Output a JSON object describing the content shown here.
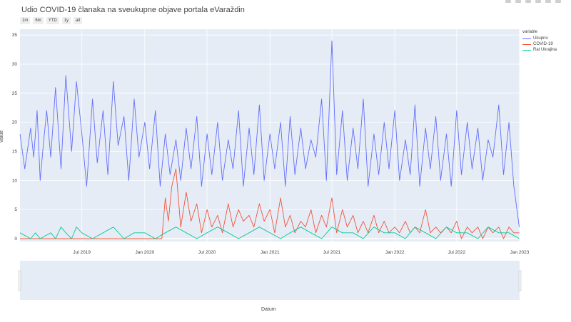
{
  "title": "Udio COVID-19 članaka na sveukupne objave portala eVaraždin",
  "range_buttons": [
    "1m",
    "6m",
    "YTD",
    "1y",
    "all"
  ],
  "chart_data": {
    "type": "line",
    "title": "Udio COVID-19 članaka na sveukupne objave portala eVaraždin",
    "xlabel": "Datum",
    "ylabel": "value",
    "legend_title": "variable",
    "legend_position": "top-right",
    "x_range": [
      "2019-01-01",
      "2023-01-01"
    ],
    "ylim": [
      0,
      36
    ],
    "y_ticks": [
      0,
      5,
      10,
      15,
      20,
      25,
      30,
      35
    ],
    "x_ticks": [
      "Jul 2019",
      "Jan 2020",
      "Jul 2020",
      "Jan 2021",
      "Jul 2021",
      "Jan 2022",
      "Jul 2022",
      "Jan 2023"
    ],
    "series": [
      {
        "name": "Ukupno",
        "color": "#636efa",
        "x": [
          "2019-01-01",
          "2019-01-15",
          "2019-02-01",
          "2019-02-10",
          "2019-02-20",
          "2019-03-01",
          "2019-03-10",
          "2019-03-20",
          "2019-04-01",
          "2019-04-15",
          "2019-05-01",
          "2019-05-15",
          "2019-06-01",
          "2019-06-15",
          "2019-07-01",
          "2019-07-15",
          "2019-08-01",
          "2019-08-15",
          "2019-09-01",
          "2019-09-15",
          "2019-10-01",
          "2019-10-15",
          "2019-11-01",
          "2019-11-15",
          "2019-12-01",
          "2019-12-15",
          "2020-01-01",
          "2020-01-15",
          "2020-02-01",
          "2020-02-15",
          "2020-03-01",
          "2020-03-15",
          "2020-04-01",
          "2020-04-15",
          "2020-05-01",
          "2020-05-15",
          "2020-06-01",
          "2020-06-15",
          "2020-07-01",
          "2020-07-15",
          "2020-08-01",
          "2020-08-15",
          "2020-09-01",
          "2020-09-15",
          "2020-10-01",
          "2020-10-15",
          "2020-11-01",
          "2020-11-15",
          "2020-12-01",
          "2020-12-15",
          "2021-01-01",
          "2021-01-15",
          "2021-02-01",
          "2021-02-15",
          "2021-03-01",
          "2021-03-15",
          "2021-04-01",
          "2021-04-15",
          "2021-05-01",
          "2021-05-15",
          "2021-06-01",
          "2021-06-15",
          "2021-07-01",
          "2021-07-15",
          "2021-08-01",
          "2021-08-15",
          "2021-09-01",
          "2021-09-15",
          "2021-10-01",
          "2021-10-15",
          "2021-11-01",
          "2021-11-15",
          "2021-12-01",
          "2021-12-15",
          "2022-01-01",
          "2022-01-15",
          "2022-02-01",
          "2022-02-15",
          "2022-03-01",
          "2022-03-15",
          "2022-04-01",
          "2022-04-15",
          "2022-05-01",
          "2022-05-15",
          "2022-06-01",
          "2022-06-15",
          "2022-07-01",
          "2022-07-15",
          "2022-08-01",
          "2022-08-15",
          "2022-09-01",
          "2022-09-15",
          "2022-10-01",
          "2022-10-15",
          "2022-11-01",
          "2022-11-15",
          "2022-12-01",
          "2022-12-15",
          "2022-12-31"
        ],
        "values": [
          18,
          12,
          19,
          14,
          22,
          10,
          16,
          22,
          14,
          26,
          12,
          28,
          15,
          27,
          18,
          9,
          24,
          13,
          22,
          11,
          27,
          16,
          21,
          10,
          24,
          14,
          20,
          12,
          22,
          9,
          18,
          11,
          17,
          10,
          19,
          12,
          21,
          9,
          18,
          11,
          20,
          10,
          17,
          12,
          22,
          9,
          19,
          11,
          23,
          10,
          18,
          12,
          20,
          9,
          21,
          11,
          19,
          12,
          17,
          14,
          24,
          10,
          34,
          11,
          22,
          10,
          19,
          12,
          24,
          9,
          18,
          11,
          20,
          12,
          22,
          10,
          17,
          11,
          23,
          9,
          19,
          12,
          21,
          10,
          18,
          9,
          22,
          11,
          20,
          12,
          19,
          10,
          17,
          14,
          23,
          11,
          20,
          9,
          2
        ]
      },
      {
        "name": "COVID-19",
        "color": "#ef553b",
        "x": [
          "2019-01-01",
          "2019-06-01",
          "2019-12-31",
          "2020-02-20",
          "2020-03-01",
          "2020-03-10",
          "2020-03-20",
          "2020-04-01",
          "2020-04-15",
          "2020-05-01",
          "2020-05-15",
          "2020-06-01",
          "2020-06-15",
          "2020-07-01",
          "2020-07-15",
          "2020-08-01",
          "2020-08-15",
          "2020-09-01",
          "2020-09-15",
          "2020-10-01",
          "2020-10-15",
          "2020-11-01",
          "2020-11-15",
          "2020-12-01",
          "2020-12-15",
          "2021-01-01",
          "2021-01-15",
          "2021-02-01",
          "2021-02-15",
          "2021-03-01",
          "2021-03-15",
          "2021-04-01",
          "2021-04-15",
          "2021-05-01",
          "2021-05-15",
          "2021-06-01",
          "2021-06-15",
          "2021-07-01",
          "2021-07-15",
          "2021-08-01",
          "2021-08-15",
          "2021-09-01",
          "2021-09-15",
          "2021-10-01",
          "2021-10-15",
          "2021-11-01",
          "2021-11-15",
          "2021-12-01",
          "2021-12-15",
          "2022-01-01",
          "2022-01-15",
          "2022-02-01",
          "2022-02-15",
          "2022-03-01",
          "2022-03-15",
          "2022-04-01",
          "2022-04-15",
          "2022-05-01",
          "2022-05-15",
          "2022-06-01",
          "2022-06-15",
          "2022-07-01",
          "2022-07-15",
          "2022-08-01",
          "2022-08-15",
          "2022-09-01",
          "2022-09-15",
          "2022-10-01",
          "2022-10-15",
          "2022-11-01",
          "2022-11-15",
          "2022-12-01",
          "2022-12-15",
          "2022-12-31"
        ],
        "values": [
          0,
          0,
          0,
          0,
          7,
          3,
          9,
          12,
          2,
          8,
          3,
          6,
          1,
          5,
          2,
          4,
          1,
          6,
          2,
          5,
          3,
          4,
          2,
          6,
          3,
          5,
          1,
          7,
          2,
          4,
          1,
          3,
          2,
          5,
          1,
          4,
          2,
          7,
          1,
          5,
          2,
          4,
          1,
          3,
          1,
          4,
          1,
          3,
          1,
          2,
          1,
          3,
          1,
          2,
          1,
          5,
          1,
          2,
          1,
          2,
          1,
          3,
          0,
          2,
          1,
          2,
          0,
          2,
          1,
          2,
          0,
          2,
          1,
          1
        ]
      },
      {
        "name": "Rat Ukrajina",
        "color": "#00cc96",
        "x": [
          "2019-01-01",
          "2019-02-01",
          "2019-02-15",
          "2019-03-01",
          "2019-04-01",
          "2019-04-15",
          "2019-05-01",
          "2019-05-15",
          "2019-06-01",
          "2019-06-15",
          "2019-07-01",
          "2019-08-01",
          "2019-09-01",
          "2019-10-01",
          "2019-11-01",
          "2019-12-01",
          "2020-01-01",
          "2020-02-01",
          "2020-03-01",
          "2020-04-01",
          "2020-05-01",
          "2020-06-01",
          "2020-07-01",
          "2020-08-01",
          "2020-09-01",
          "2020-10-01",
          "2020-11-01",
          "2020-12-01",
          "2021-01-01",
          "2021-02-01",
          "2021-03-01",
          "2021-04-01",
          "2021-05-01",
          "2021-06-01",
          "2021-07-01",
          "2021-08-01",
          "2021-09-01",
          "2021-10-01",
          "2021-11-01",
          "2021-12-01",
          "2022-01-01",
          "2022-02-01",
          "2022-03-01",
          "2022-04-01",
          "2022-05-01",
          "2022-06-01",
          "2022-07-01",
          "2022-08-01",
          "2022-09-01",
          "2022-10-01",
          "2022-11-01",
          "2022-12-01",
          "2022-12-31"
        ],
        "values": [
          1,
          0,
          1,
          0,
          1,
          0,
          2,
          1,
          0,
          2,
          1,
          0,
          1,
          2,
          0,
          1,
          1,
          0,
          1,
          2,
          1,
          0,
          1,
          2,
          1,
          0,
          1,
          2,
          1,
          0,
          1,
          2,
          1,
          0,
          2,
          1,
          1,
          0,
          2,
          1,
          1,
          0,
          2,
          1,
          0,
          2,
          1,
          1,
          0,
          2,
          1,
          1,
          0
        ]
      }
    ]
  }
}
